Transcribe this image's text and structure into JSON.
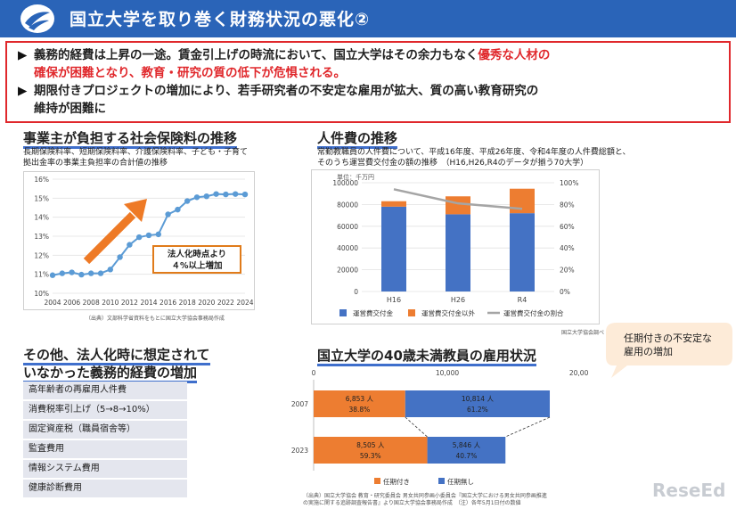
{
  "header": {
    "title": "国立大学を取り巻く財務状況の悪化②"
  },
  "alert": {
    "line1_a": "義務的経費は上昇の一途。賃金引上げの時流において、国立大学はその余力もなく",
    "line1_red": "優秀な人材の",
    "line2_red": "確保が困難となり、教育・研究の質の低下が危惧される。",
    "line3": "期限付きプロジェクトの増加により、若手研究者の不安定な雇用が拡大、質の高い教育研究の",
    "line4": "維持が困難に"
  },
  "social_insurance": {
    "title": "事業主が負担する社会保険料の推移",
    "desc1": "長期保険料率、短期保険料率、介護保険料率、子ども・子育て",
    "desc2": "拠出金率の事業主負担率の合計値の推移",
    "callout1": "法人化時点より",
    "callout2": "４%以上増加",
    "source": "（出典）文部科学省資料をもとに国立大学協会事務局作成"
  },
  "personnel": {
    "title": "人件費の推移",
    "desc1": "常勤教職員の人件費について、平成16年度、平成26年度、令和4年度の人件費総額と、",
    "desc2": "そのうち運営費交付金の額の推移　（H16,H26,R4のデータが揃う70大学）",
    "unit": "単位：千万円",
    "source": "国立大学協会調べ"
  },
  "other_expenses": {
    "title1": "その他、法人化時に想定されて",
    "title2": "いなかった義務的経費の増加",
    "items": [
      "高年齢者の再雇用人件費",
      "消費税率引上げ（5→8→10%）",
      "固定資産税（職員宿舎等）",
      "監査費用",
      "情報システム費用",
      "健康診断費用"
    ]
  },
  "employment": {
    "title": "国立大学の40歳未満教員の雇用状況",
    "source1": "（出典）国立大学協会 教育・研究委員会 男女共同参画小委員会『国立大学における男女共同参画推進",
    "source2": "の実施に関する追跡調査報告書』より国立大学協会事務局作成　（注）各年5月1日付の数値"
  },
  "bubble": {
    "line1": "任期付きの不安定な",
    "line2": "雇用の増加"
  },
  "brand": {
    "logo_text": "ReseEd"
  },
  "chart_data": [
    {
      "type": "line",
      "x": [
        2004,
        2005,
        2006,
        2007,
        2008,
        2009,
        2010,
        2011,
        2012,
        2013,
        2014,
        2015,
        2016,
        2017,
        2018,
        2019,
        2020,
        2021,
        2022,
        2023,
        2024
      ],
      "series": [
        {
          "values": [
            10.95,
            11.05,
            11.1,
            10.98,
            11.05,
            11.05,
            11.25,
            11.9,
            12.55,
            12.95,
            13.05,
            13.1,
            14.15,
            14.4,
            14.85,
            15.05,
            15.1,
            15.22,
            15.2,
            15.22,
            15.2
          ]
        }
      ],
      "xticks": [
        "2004",
        "2006",
        "2008",
        "2010",
        "2012",
        "2014",
        "2016",
        "2018",
        "2020",
        "2022",
        "2024"
      ],
      "yticks": [
        "10%",
        "11%",
        "12%",
        "13%",
        "14%",
        "15%",
        "16%"
      ],
      "ylim": [
        10,
        16
      ],
      "color": "#5b9bd5",
      "grid": true
    },
    {
      "type": "bar",
      "categories": [
        "H16",
        "H26",
        "R4"
      ],
      "series": [
        {
          "name": "運営費交付金",
          "values": [
            78000,
            71000,
            72000
          ],
          "color": "#4472c4"
        },
        {
          "name": "運営費交付金以外",
          "values": [
            5000,
            16500,
            22500
          ],
          "color": "#ed7d31"
        },
        {
          "name": "運営費交付金の割合",
          "values": [
            94,
            81,
            76
          ],
          "axis": "right",
          "type": "line",
          "color": "#a5a5a5"
        }
      ],
      "ylim": [
        0,
        100000
      ],
      "yticks": [
        "0",
        "20000",
        "40000",
        "60000",
        "80000",
        "100000"
      ],
      "y2lim": [
        0,
        100
      ],
      "y2ticks": [
        "0%",
        "20%",
        "40%",
        "60%",
        "80%",
        "100%"
      ],
      "legend": "bottom"
    },
    {
      "type": "bar",
      "orientation": "horizontal",
      "stacked": true,
      "categories": [
        "2007",
        "2023"
      ],
      "series": [
        {
          "name": "任期付き",
          "values": [
            6853,
            8505
          ],
          "labels": [
            "6,853 人",
            "8,505 人"
          ],
          "shares": [
            "38.8%",
            "59.3%"
          ],
          "color": "#ed7d31"
        },
        {
          "name": "任期無し",
          "values": [
            10814,
            5846
          ],
          "labels": [
            "10,814 人",
            "5,846 人"
          ],
          "shares": [
            "61.2%",
            "40.7%"
          ],
          "color": "#4472c4"
        }
      ],
      "xlim": [
        0,
        20000
      ],
      "xticks": [
        "0",
        "10,000",
        "20,000"
      ],
      "legend": "bottom"
    }
  ]
}
